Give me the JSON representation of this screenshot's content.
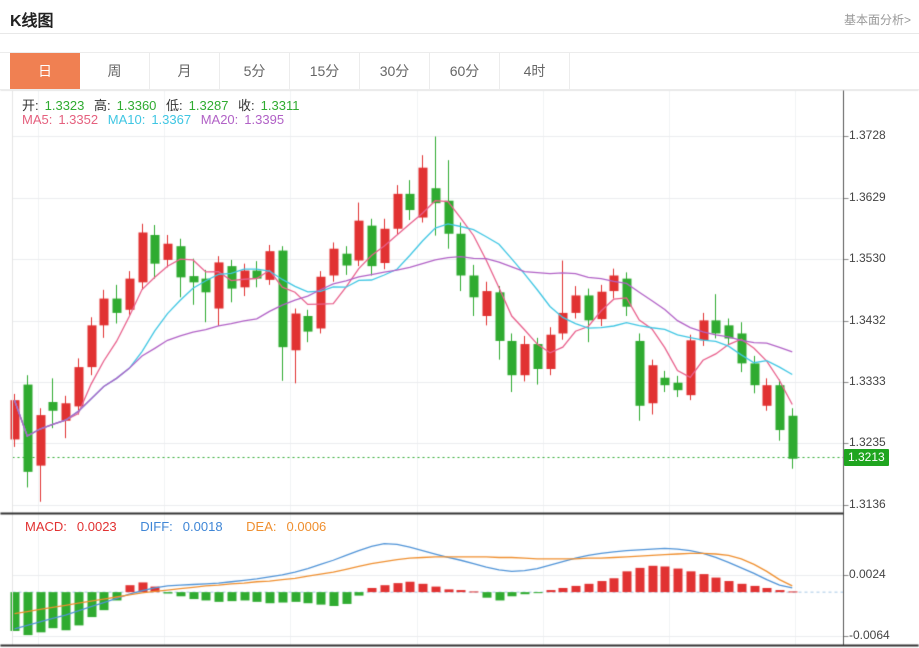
{
  "header": {
    "title": "K线图",
    "link": "基本面分析>"
  },
  "tabs": {
    "items": [
      {
        "label": "日",
        "active": true
      },
      {
        "label": "周",
        "active": false
      },
      {
        "label": "月",
        "active": false
      },
      {
        "label": "5分",
        "active": false
      },
      {
        "label": "15分",
        "active": false
      },
      {
        "label": "30分",
        "active": false
      },
      {
        "label": "60分",
        "active": false
      },
      {
        "label": "4时",
        "active": false
      }
    ]
  },
  "ohlc": {
    "open_label": "开:",
    "open": "1.3323",
    "high_label": "高:",
    "high": "1.3360",
    "low_label": "低:",
    "low": "1.3287",
    "close_label": "收:",
    "close": "1.3311"
  },
  "ma_header": {
    "ma5_label": "MA5:",
    "ma5": "1.3352",
    "ma10_label": "MA10:",
    "ma10": "1.3367",
    "ma20_label": "MA20:",
    "ma20": "1.3395"
  },
  "macd_header": {
    "macd_label": "MACD:",
    "macd": "0.0023",
    "diff_label": "DIFF:",
    "diff": "0.0018",
    "dea_label": "DEA:",
    "dea": "0.0006"
  },
  "colors": {
    "up": "#e13232",
    "down": "#2fab30",
    "ma5": "#e8608c",
    "ma10": "#3fc6e3",
    "ma20": "#b161c6",
    "diff_line": "#4f93d7",
    "dea_line": "#ef8f2f",
    "accent_tab": "#f08052",
    "price_badge": "#1fa51f",
    "grid": "#ebedef",
    "vgrid": "#f1f3f5",
    "dark_border": "#333333",
    "axis_line": "#555555",
    "zero_dash": "#a6c7e5",
    "price_dash": "#2fab30"
  },
  "chart_data": {
    "type": "candlestick",
    "title": "K线图",
    "period": "日",
    "grid": true,
    "y_axis": {
      "labels": [
        "1.3728",
        "1.3629",
        "1.3530",
        "1.3432",
        "1.3333",
        "1.3235",
        "1.3136"
      ],
      "values": [
        1.3728,
        1.3629,
        1.353,
        1.3432,
        1.3333,
        1.3235,
        1.3136
      ]
    },
    "current_price": 1.3213,
    "current_price_label": "1.3213",
    "ma_periods": [
      5,
      10,
      20
    ],
    "candles_ohlc_order": [
      "open",
      "high",
      "low",
      "close"
    ],
    "candles": [
      [
        1.3242,
        1.3315,
        1.323,
        1.3305
      ],
      [
        1.333,
        1.3345,
        1.3165,
        1.319
      ],
      [
        1.32,
        1.3292,
        1.3142,
        1.3281
      ],
      [
        1.3302,
        1.334,
        1.326,
        1.3288
      ],
      [
        1.3272,
        1.3312,
        1.3244,
        1.33
      ],
      [
        1.3295,
        1.3372,
        1.3282,
        1.3358
      ],
      [
        1.3358,
        1.3438,
        1.3345,
        1.3425
      ],
      [
        1.3425,
        1.3482,
        1.3405,
        1.3468
      ],
      [
        1.3468,
        1.349,
        1.3428,
        1.3445
      ],
      [
        1.345,
        1.3512,
        1.3442,
        1.35
      ],
      [
        1.3494,
        1.3588,
        1.3482,
        1.3574
      ],
      [
        1.357,
        1.3586,
        1.35,
        1.3524
      ],
      [
        1.353,
        1.357,
        1.3518,
        1.3556
      ],
      [
        1.3552,
        1.3564,
        1.347,
        1.3502
      ],
      [
        1.3504,
        1.3532,
        1.3458,
        1.3494
      ],
      [
        1.35,
        1.3514,
        1.343,
        1.3478
      ],
      [
        1.3452,
        1.3536,
        1.3424,
        1.3526
      ],
      [
        1.352,
        1.353,
        1.3462,
        1.3484
      ],
      [
        1.3486,
        1.3524,
        1.3472,
        1.3513
      ],
      [
        1.3513,
        1.3528,
        1.3486,
        1.35
      ],
      [
        1.3498,
        1.3554,
        1.349,
        1.3544
      ],
      [
        1.3545,
        1.3552,
        1.3336,
        1.339
      ],
      [
        1.3385,
        1.3452,
        1.3332,
        1.3444
      ],
      [
        1.344,
        1.345,
        1.3398,
        1.3415
      ],
      [
        1.342,
        1.3512,
        1.3412,
        1.3503
      ],
      [
        1.3505,
        1.3558,
        1.3495,
        1.3548
      ],
      [
        1.354,
        1.3552,
        1.3506,
        1.3521
      ],
      [
        1.3529,
        1.3622,
        1.352,
        1.3593
      ],
      [
        1.3585,
        1.3596,
        1.3505,
        1.352
      ],
      [
        1.3525,
        1.3596,
        1.3515,
        1.358
      ],
      [
        1.358,
        1.365,
        1.357,
        1.3636
      ],
      [
        1.3636,
        1.3658,
        1.3594,
        1.361
      ],
      [
        1.3598,
        1.3698,
        1.359,
        1.3678
      ],
      [
        1.3645,
        1.3728,
        1.3569,
        1.3621
      ],
      [
        1.3625,
        1.369,
        1.3548,
        1.3572
      ],
      [
        1.3572,
        1.359,
        1.348,
        1.3505
      ],
      [
        1.3505,
        1.3522,
        1.344,
        1.347
      ],
      [
        1.344,
        1.3495,
        1.3425,
        1.348
      ],
      [
        1.3478,
        1.3488,
        1.337,
        1.34
      ],
      [
        1.34,
        1.3412,
        1.3318,
        1.3345
      ],
      [
        1.3345,
        1.3408,
        1.3335,
        1.3395
      ],
      [
        1.3395,
        1.3405,
        1.333,
        1.3355
      ],
      [
        1.3355,
        1.3422,
        1.3345,
        1.341
      ],
      [
        1.3412,
        1.3529,
        1.3402,
        1.3445
      ],
      [
        1.3445,
        1.3488,
        1.3436,
        1.3473
      ],
      [
        1.3473,
        1.3484,
        1.3398,
        1.3433
      ],
      [
        1.3435,
        1.349,
        1.3424,
        1.3479
      ],
      [
        1.348,
        1.3516,
        1.3468,
        1.3505
      ],
      [
        1.35,
        1.351,
        1.344,
        1.3455
      ],
      [
        1.34,
        1.3412,
        1.3272,
        1.3296
      ],
      [
        1.33,
        1.337,
        1.3282,
        1.3361
      ],
      [
        1.3341,
        1.3352,
        1.3318,
        1.3329
      ],
      [
        1.3333,
        1.3344,
        1.331,
        1.3321
      ],
      [
        1.3313,
        1.341,
        1.3305,
        1.3401
      ],
      [
        1.3401,
        1.3445,
        1.3392,
        1.3433
      ],
      [
        1.3433,
        1.3475,
        1.3404,
        1.3412
      ],
      [
        1.3425,
        1.3436,
        1.3394,
        1.3404
      ],
      [
        1.3412,
        1.343,
        1.335,
        1.3364
      ],
      [
        1.3364,
        1.3376,
        1.3316,
        1.3329
      ],
      [
        1.3296,
        1.334,
        1.3288,
        1.3329
      ],
      [
        1.3329,
        1.3338,
        1.324,
        1.3257
      ],
      [
        1.328,
        1.3292,
        1.3195,
        1.3211
      ]
    ],
    "macd": {
      "y_axis": {
        "labels": [
          "0.0024",
          "-0.0064"
        ],
        "values": [
          0.0024,
          -0.0064
        ]
      },
      "unit": 0.0001,
      "hist": [
        -56,
        -62,
        -58,
        -52,
        -55,
        -48,
        -36,
        -26,
        -12,
        10,
        14,
        8,
        -2,
        -6,
        -10,
        -12,
        -14,
        -13,
        -12,
        -14,
        -16,
        -15,
        -14,
        -16,
        -18,
        -20,
        -17,
        -5,
        6,
        10,
        13,
        15,
        12,
        8,
        4,
        3,
        1,
        -8,
        -12,
        -6,
        -3,
        -1,
        3,
        6,
        9,
        12,
        16,
        20,
        30,
        35,
        38,
        37,
        34,
        30,
        26,
        21,
        16,
        12,
        9,
        6,
        3,
        1
      ],
      "diff": [
        -53,
        -48,
        -43,
        -38,
        -33,
        -27,
        -21,
        -15,
        -9,
        -3,
        2,
        6,
        9,
        10,
        11,
        12,
        13,
        15,
        17,
        19,
        22,
        25,
        29,
        34,
        40,
        46,
        53,
        60,
        66,
        70,
        69,
        65,
        60,
        55,
        50,
        46,
        41,
        36,
        32,
        30,
        31,
        34,
        39,
        44,
        49,
        53,
        56,
        58,
        60,
        61,
        62,
        63,
        62,
        60,
        56,
        50,
        43,
        35,
        27,
        18,
        10,
        6
      ],
      "dea": [
        -31,
        -28,
        -25,
        -22,
        -19,
        -16,
        -13,
        -10,
        -7,
        -4,
        -1,
        1,
        3,
        5,
        7,
        9,
        10,
        12,
        13,
        15,
        16,
        18,
        20,
        23,
        26,
        29,
        33,
        37,
        41,
        44,
        47,
        49,
        50,
        51,
        51,
        51,
        51,
        51,
        50,
        50,
        49,
        48,
        48,
        48,
        48,
        49,
        49,
        50,
        51,
        52,
        53,
        54,
        55,
        56,
        56,
        55,
        53,
        48,
        40,
        30,
        18,
        9
      ]
    }
  }
}
